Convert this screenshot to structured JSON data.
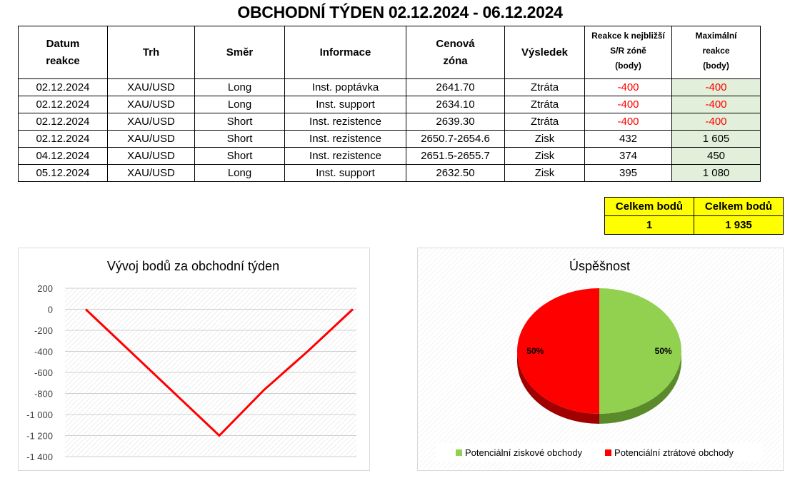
{
  "title": "OBCHODNÍ TÝDEN 02.12.2024 - 06.12.2024",
  "table": {
    "headers": {
      "date_1": "Datum",
      "date_2": "reakce",
      "market": "Trh",
      "direction": "Směr",
      "info": "Informace",
      "zone_1": "Cenová",
      "zone_2": "zóna",
      "result": "Výsledek",
      "reaction_1": "Reakce k nejbližší",
      "reaction_2": "S/R zóně",
      "reaction_3": "(body)",
      "max_1": "Maximální",
      "max_2": "reakce",
      "max_3": "(body)"
    },
    "rows": [
      {
        "date": "02.12.2024",
        "market": "XAU/USD",
        "direction": "Long",
        "info": "Inst. poptávka",
        "zone": "2641.70",
        "result": "Ztráta",
        "reaction": "-400",
        "max": "-400"
      },
      {
        "date": "02.12.2024",
        "market": "XAU/USD",
        "direction": "Long",
        "info": "Inst. support",
        "zone": "2634.10",
        "result": "Ztráta",
        "reaction": "-400",
        "max": "-400"
      },
      {
        "date": "02.12.2024",
        "market": "XAU/USD",
        "direction": "Short",
        "info": "Inst. rezistence",
        "zone": "2639.30",
        "result": "Ztráta",
        "reaction": "-400",
        "max": "-400"
      },
      {
        "date": "02.12.2024",
        "market": "XAU/USD",
        "direction": "Short",
        "info": "Inst. rezistence",
        "zone": "2650.7-2654.6",
        "result": "Zisk",
        "reaction": "432",
        "max": "1 605"
      },
      {
        "date": "04.12.2024",
        "market": "XAU/USD",
        "direction": "Short",
        "info": "Inst. rezistence",
        "zone": "2651.5-2655.7",
        "result": "Zisk",
        "reaction": "374",
        "max": "450"
      },
      {
        "date": "05.12.2024",
        "market": "XAU/USD",
        "direction": "Long",
        "info": "Inst. support",
        "zone": "2632.50",
        "result": "Zisk",
        "reaction": "395",
        "max": "1 080"
      }
    ]
  },
  "totals": {
    "label_1": "Celkem bodů",
    "value_1": "1",
    "label_2": "Celkem bodů",
    "value_2": "1 935"
  },
  "colors": {
    "loss_text": "#ff0000",
    "max_bg": "#e2efda",
    "totals_bg": "#ffff00",
    "line": "#ff0000",
    "pie_profit": "#92d050",
    "pie_loss": "#ff0000"
  },
  "chart_data": [
    {
      "type": "line",
      "title": "Vývoj bodů za obchodní týden",
      "x": [
        0,
        1,
        2,
        3,
        4,
        5,
        6
      ],
      "y": [
        0,
        -400,
        -800,
        -1200,
        -768,
        -394,
        1
      ],
      "ylim": [
        -1400,
        200
      ],
      "yticks": [
        200,
        0,
        -200,
        -400,
        -600,
        -800,
        -1000,
        -1200,
        -1400
      ],
      "ytick_labels": [
        "200",
        "0",
        "-200",
        "-400",
        "-600",
        "-800",
        "-1 000",
        "-1 200",
        "-1 400"
      ],
      "grid": true
    },
    {
      "type": "pie",
      "title": "Úspěšnost",
      "labels": [
        "Potenciální ziskové obchody",
        "Potenciální ztrátové obchody"
      ],
      "values": [
        50,
        50
      ],
      "data_labels": [
        "50%",
        "50%"
      ],
      "legend": "bottom"
    }
  ]
}
